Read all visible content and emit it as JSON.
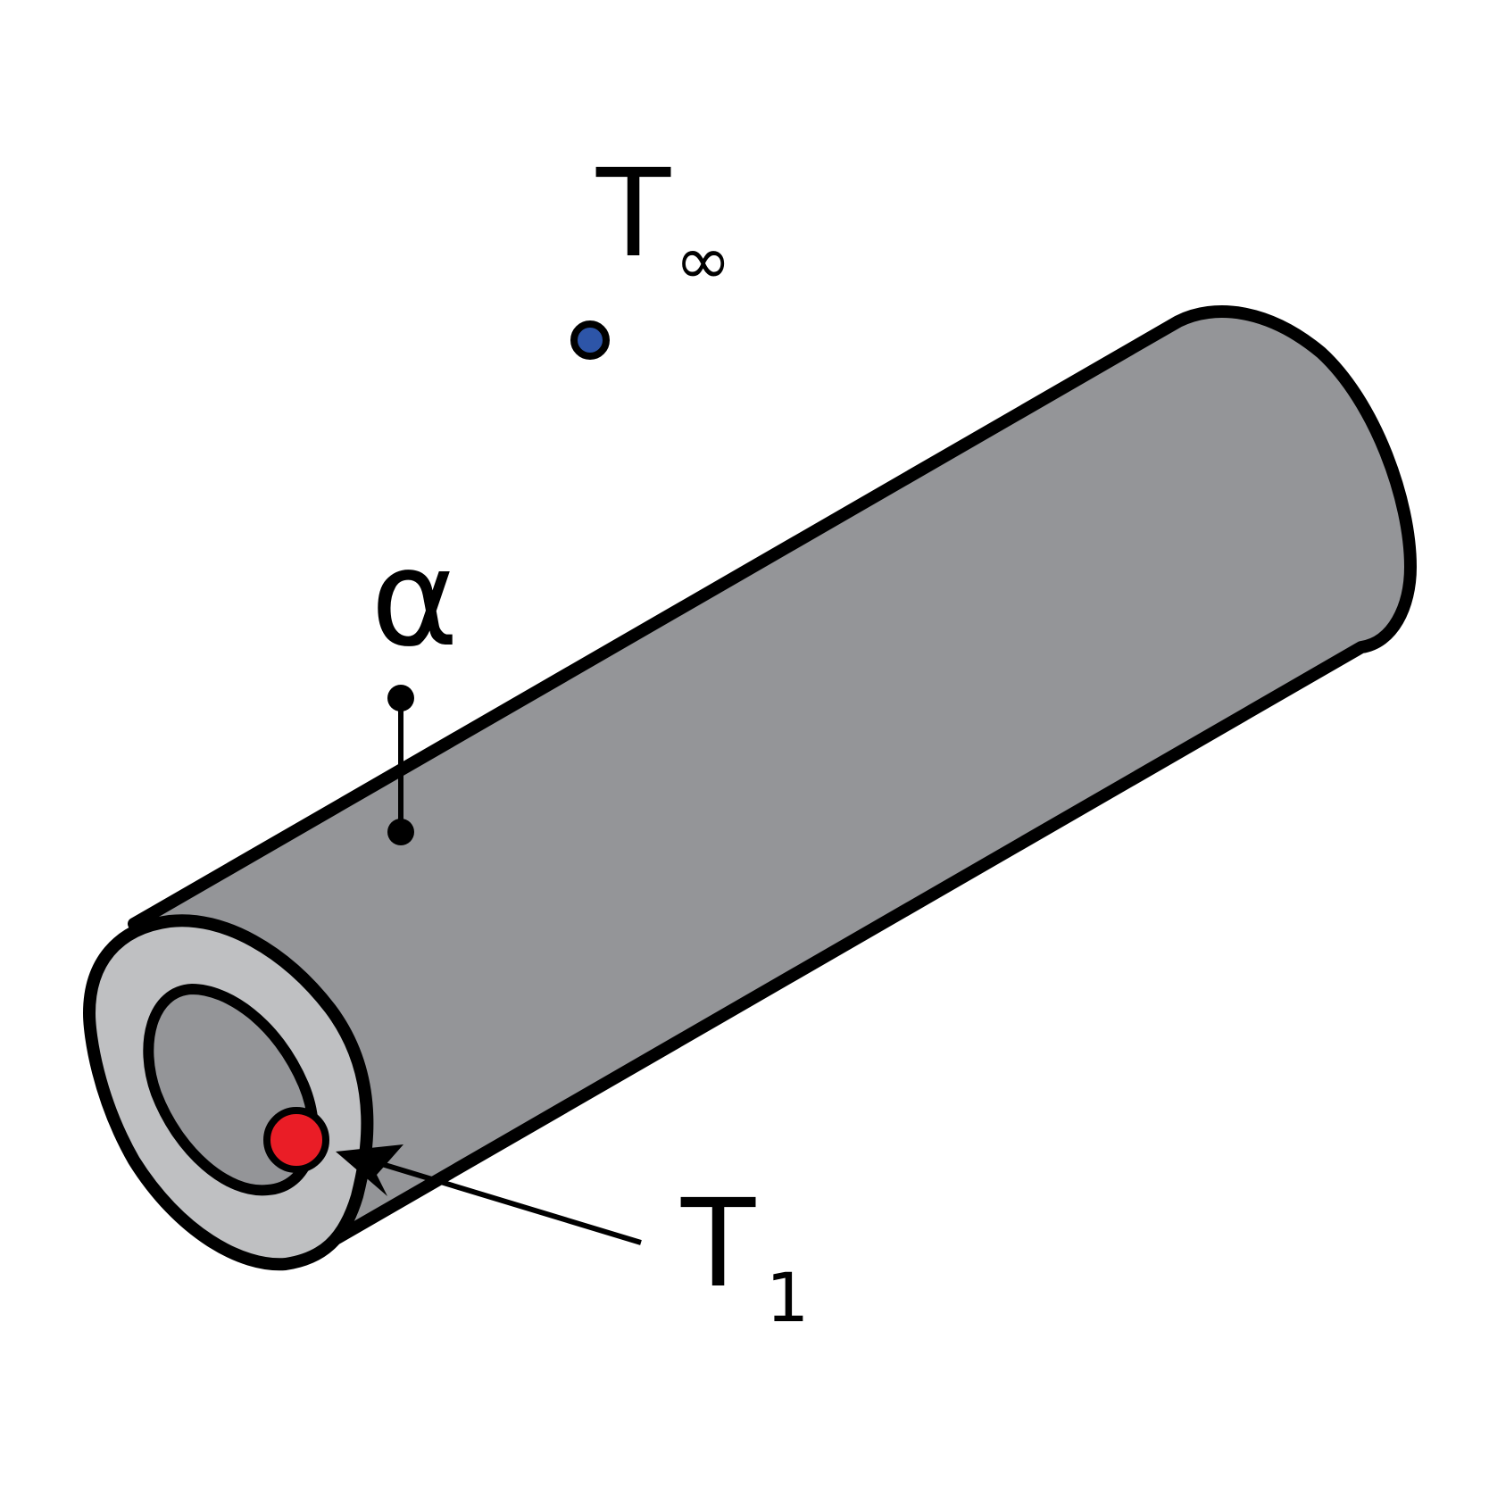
{
  "labels": {
    "ambient_temperature": {
      "symbol": "T",
      "subscript": "∞"
    },
    "inner_temperature": {
      "symbol": "T",
      "subscript": "1"
    },
    "heat_transfer_coefficient": {
      "symbol": "α"
    }
  },
  "colors": {
    "background": "#ffffff",
    "pipe_body": "#949598",
    "pipe_end_face": "#bfc0c2",
    "pipe_bore": "#949598",
    "outline": "#000000",
    "ambient_marker": "#2d55a8",
    "inner_marker": "#ea1d26"
  },
  "icons": {
    "ambient_marker": "blue-dot",
    "inner_marker": "red-dot",
    "leader_arrow": "arrow",
    "alpha_marker": "dumbbell"
  }
}
